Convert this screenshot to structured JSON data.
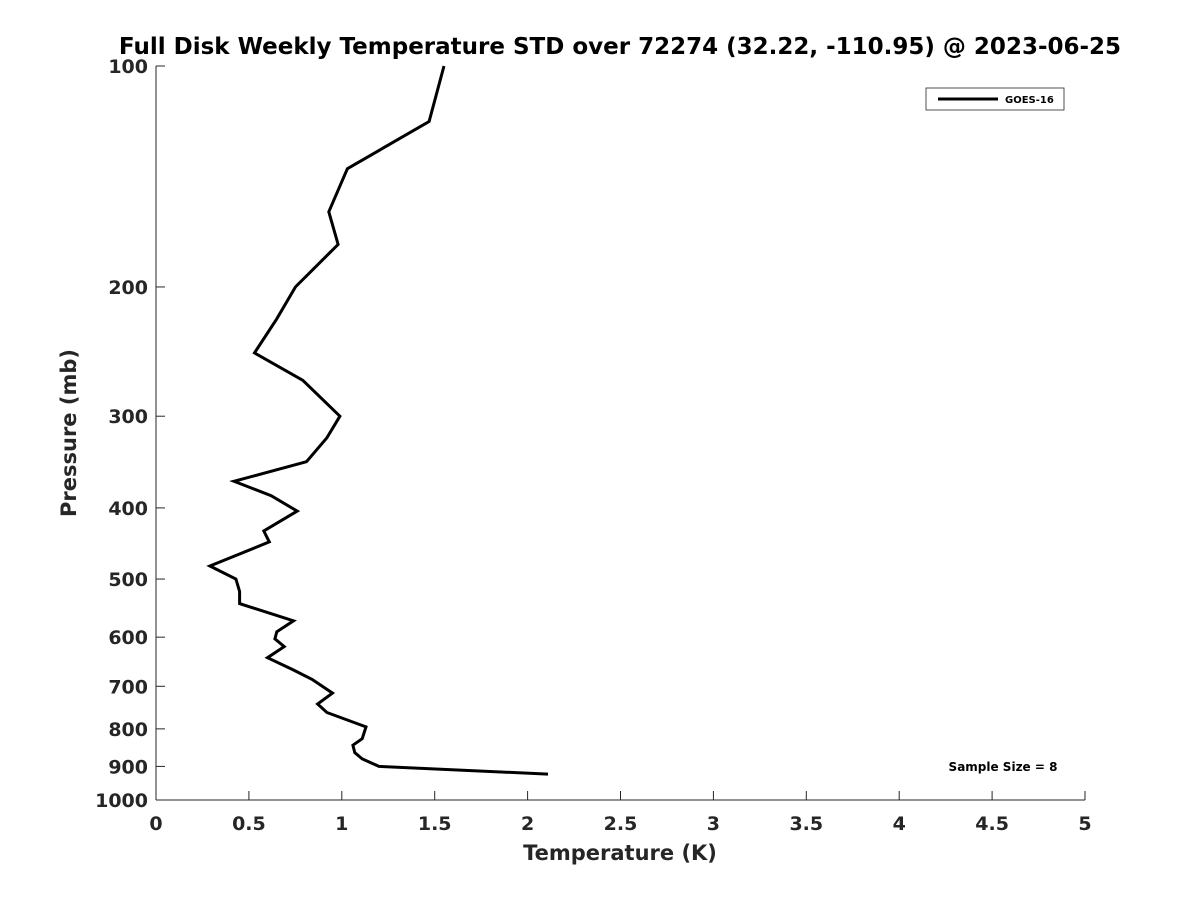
{
  "chart_data": {
    "type": "line",
    "title": "Full Disk Weekly Temperature STD over 72274 (32.22, -110.95) @ 2023-06-25",
    "xlabel": "Temperature (K)",
    "ylabel": "Pressure (mb)",
    "xlim": [
      0,
      5
    ],
    "ylim": [
      100,
      1000
    ],
    "yscale": "log",
    "y_reversed": true,
    "grid": false,
    "legend_position": "top-right",
    "x_ticks": [
      0,
      0.5,
      1,
      1.5,
      2,
      2.5,
      3,
      3.5,
      4,
      4.5,
      5
    ],
    "x_tick_labels": [
      "0",
      "0.5",
      "1",
      "1.5",
      "2",
      "2.5",
      "3",
      "3.5",
      "4",
      "4.5",
      "5"
    ],
    "y_ticks": [
      100,
      200,
      300,
      400,
      500,
      600,
      700,
      800,
      900,
      1000
    ],
    "y_tick_labels": [
      "100",
      "200",
      "300",
      "400",
      "500",
      "600",
      "700",
      "800",
      "900",
      "1000"
    ],
    "annotation": "Sample Size = 8",
    "series": [
      {
        "name": "GOES-16",
        "color": "#000000",
        "x": [
          1.55,
          1.47,
          1.03,
          0.93,
          0.98,
          0.75,
          0.65,
          0.53,
          0.79,
          0.99,
          0.92,
          0.81,
          0.42,
          0.62,
          0.76,
          0.58,
          0.61,
          0.29,
          0.43,
          0.45,
          0.45,
          0.74,
          0.65,
          0.64,
          0.69,
          0.6,
          0.74,
          0.84,
          0.95,
          0.87,
          0.92,
          1.13,
          1.11,
          1.06,
          1.07,
          1.11,
          1.2,
          2.11
        ],
        "y": [
          100,
          119,
          138,
          158,
          175,
          200,
          221,
          246,
          268,
          300,
          321,
          346,
          368,
          385,
          404,
          430,
          445,
          480,
          500,
          520,
          540,
          570,
          590,
          603,
          618,
          640,
          665,
          685,
          715,
          740,
          760,
          795,
          825,
          842,
          862,
          879,
          900,
          922
        ]
      }
    ]
  }
}
